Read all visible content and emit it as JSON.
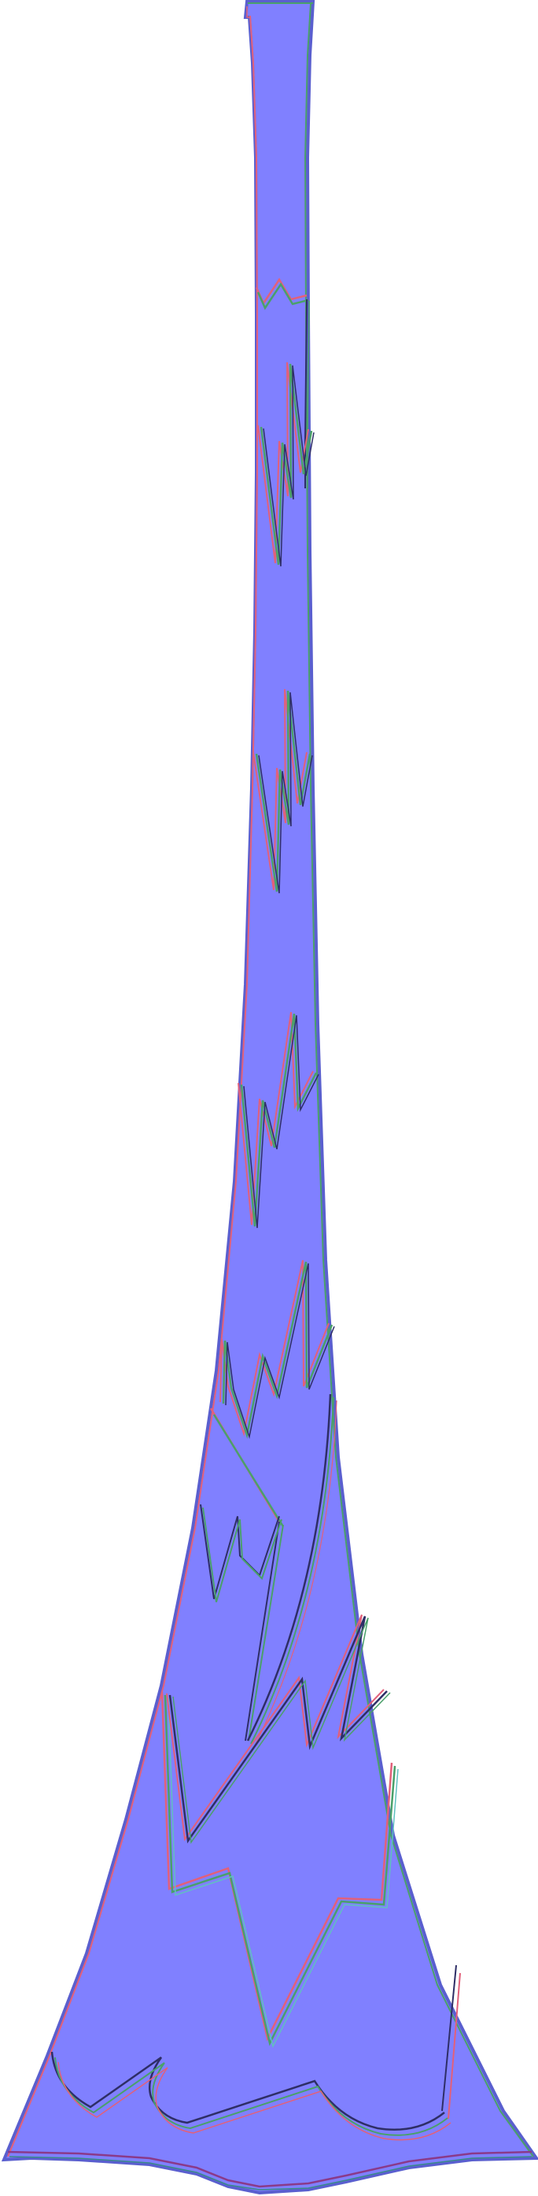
{
  "figure": {
    "subject": "vase-silhouette",
    "colors": {
      "background": "#ffffff",
      "fill": "#8080ff",
      "edge_outer": "#5a5fcf",
      "edge_red": "#e2607a",
      "edge_green": "#4aa06a",
      "edge_dark": "#2e2e66",
      "edge_teal": "#60c0c0"
    }
  }
}
